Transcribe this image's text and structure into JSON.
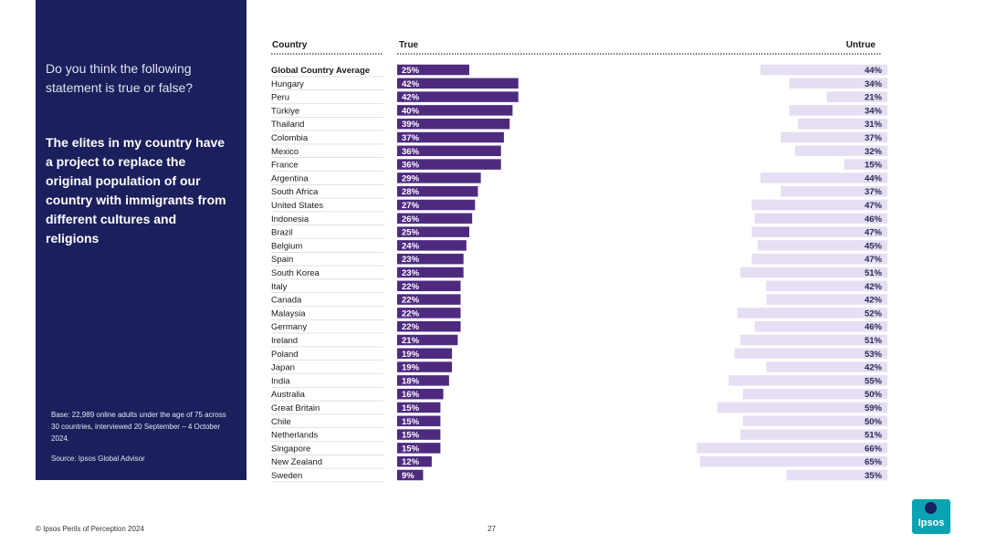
{
  "sidebar": {
    "question": "Do you think the following statement is true or false?",
    "statement": "The elites in my country have a project to replace the original population of our country with immigrants from different cultures and religions",
    "base": "Base: 22,989 online adults under the age of 75 across 30 countries, interviewed 20 September – 4 October 2024.",
    "source": "Source: Ipsos Global Advisor"
  },
  "footer": {
    "copyright": "© Ipsos Perils of Perception 2024",
    "page_number": "27",
    "logo_text": "Ipsos"
  },
  "colors": {
    "sidebar": "#1b1f5c",
    "true_bar": "#4e2a7f",
    "untrue_bar": "#e6def3",
    "logo": "#0aa3b3"
  },
  "chart_data": {
    "type": "bar",
    "orientation": "horizontal",
    "headers": {
      "category": "Country",
      "true": "True",
      "untrue": "Untrue"
    },
    "value_format": "percent",
    "xlim": [
      0,
      100
    ],
    "categories": [
      "Global Country Average",
      "Hungary",
      "Peru",
      "Türkiye",
      "Thailand",
      "Colombia",
      "Mexico",
      "France",
      "Argentina",
      "South Africa",
      "United States",
      "Indonesia",
      "Brazil",
      "Belgium",
      "Spain",
      "South Korea",
      "Italy",
      "Canada",
      "Malaysia",
      "Germany",
      "Ireland",
      "Poland",
      "Japan",
      "India",
      "Australia",
      "Great Britain",
      "Chile",
      "Netherlands",
      "Singapore",
      "New Zealand",
      "Sweden"
    ],
    "series": [
      {
        "name": "True",
        "values": [
          25,
          42,
          42,
          40,
          39,
          37,
          36,
          36,
          29,
          28,
          27,
          26,
          25,
          24,
          23,
          23,
          22,
          22,
          22,
          22,
          21,
          19,
          19,
          18,
          16,
          15,
          15,
          15,
          15,
          12,
          9
        ]
      },
      {
        "name": "Untrue",
        "values": [
          44,
          34,
          21,
          34,
          31,
          37,
          32,
          15,
          44,
          37,
          47,
          46,
          47,
          45,
          47,
          51,
          42,
          42,
          52,
          46,
          51,
          53,
          42,
          55,
          50,
          59,
          50,
          51,
          66,
          65,
          35
        ]
      }
    ]
  }
}
